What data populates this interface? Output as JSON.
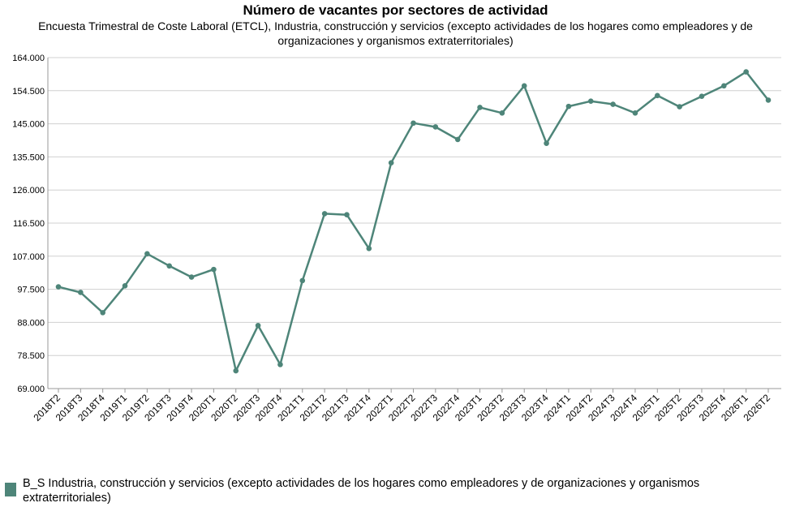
{
  "colors": {
    "series": "#4e8579",
    "grid": "#d0d0d0",
    "axis": "#999999"
  },
  "chart_data": {
    "type": "line",
    "title": "Número de vacantes por sectores de actividad",
    "subtitle": "Encuesta Trimestral de Coste Laboral (ETCL), Industria, construcción y servicios (excepto actividades de los hogares como empleadores y de organizaciones y organismos extraterritoriales)",
    "ylim": [
      69000,
      164000
    ],
    "y_ticks": [
      69000,
      78500,
      88000,
      97500,
      107000,
      116500,
      126000,
      135500,
      145000,
      154500,
      164000
    ],
    "y_tick_labels": [
      "69.000",
      "78.500",
      "88.000",
      "97.500",
      "107.000",
      "116.500",
      "126.000",
      "135.500",
      "145.000",
      "154.500",
      "164.000"
    ],
    "grid": true,
    "legend_position": "bottom",
    "categories": [
      "2018T2",
      "2018T3",
      "2018T4",
      "2019T1",
      "2019T2",
      "2019T3",
      "2019T4",
      "2020T1",
      "2020T2",
      "2020T3",
      "2020T4",
      "2021T1",
      "2021T2",
      "2021T3",
      "2021T4",
      "2022T1",
      "2022T2",
      "2022T3",
      "2022T4",
      "2023T1",
      "2023T2",
      "2023T3",
      "2023T4",
      "2024T1",
      "2024T2",
      "2024T3",
      "2024T4",
      "2025T1",
      "2025T2",
      "2025T3",
      "2025T4",
      "2026T1",
      "2026T2"
    ],
    "series": [
      {
        "name": "B_S Industria, construcción y servicios (excepto actividades de los hogares como empleadores y de organizaciones y organismos extraterritoriales)",
        "values": [
          98200,
          96600,
          90800,
          98500,
          107700,
          104200,
          101000,
          103200,
          74100,
          87100,
          75900,
          100000,
          119200,
          118900,
          109200,
          133800,
          145200,
          144100,
          140500,
          149700,
          148100,
          155900,
          139400,
          150000,
          151500,
          150600,
          148100,
          153100,
          149900,
          152900,
          155900,
          159900,
          151800
        ]
      }
    ]
  }
}
